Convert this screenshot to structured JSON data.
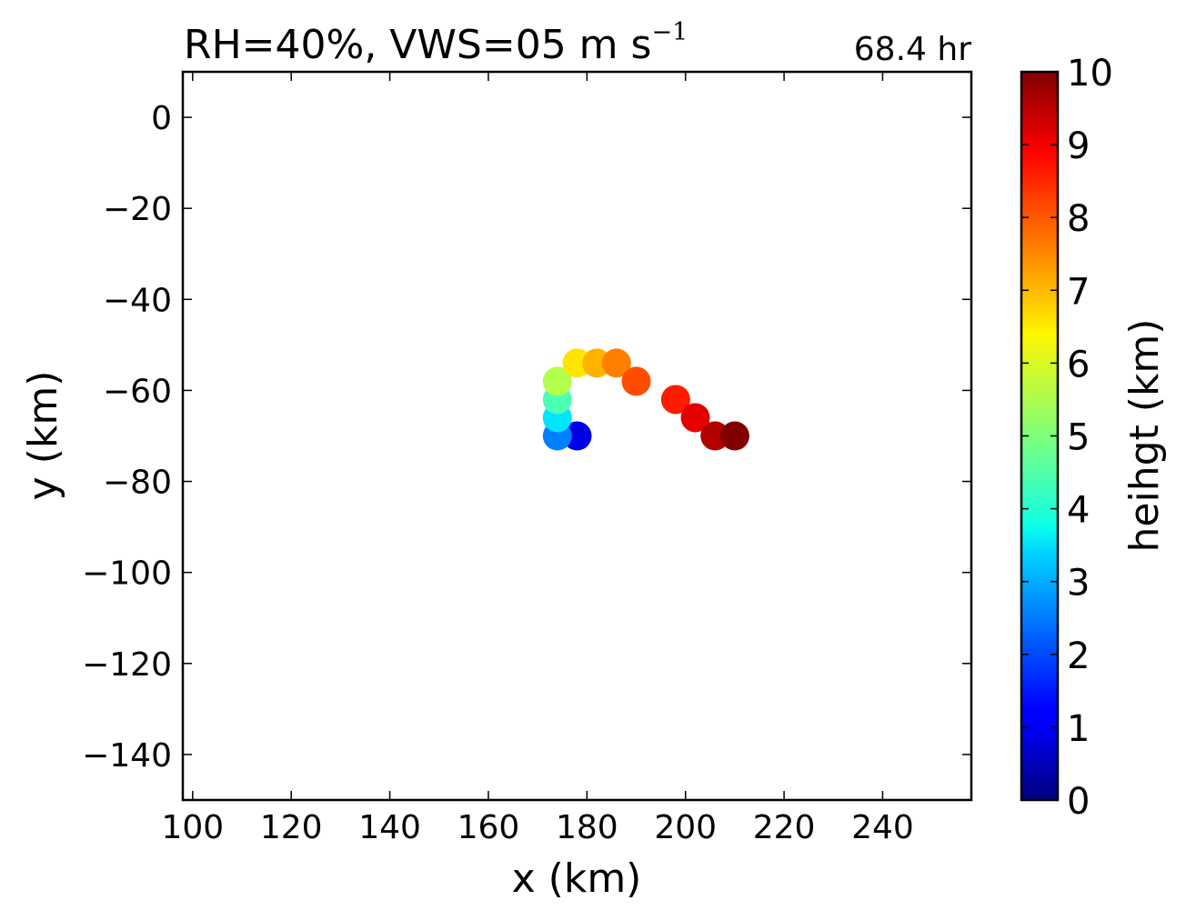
{
  "title": {
    "main": "RH=40%, VWS=05 m s",
    "superscript": "−1",
    "time_label": "68.4 hr",
    "time_color": "#0000ee"
  },
  "chart_data": {
    "type": "scatter",
    "xlabel": "x (km)",
    "ylabel": "y (km)",
    "xlim": [
      98,
      258
    ],
    "ylim": [
      -150,
      10
    ],
    "xticks": [
      100,
      120,
      140,
      160,
      180,
      200,
      220,
      240
    ],
    "xtick_labels": [
      "100",
      "120",
      "140",
      "160",
      "180",
      "200",
      "220",
      "240"
    ],
    "yticks": [
      0,
      -20,
      -40,
      -60,
      -80,
      -100,
      -120,
      -140
    ],
    "ytick_labels": [
      "0",
      "−20",
      "−40",
      "−60",
      "−80",
      "−100",
      "−120",
      "−140"
    ],
    "grid": false,
    "colormap": "jet",
    "colorbar": {
      "label": "heihgt (km)",
      "range": [
        0,
        10
      ],
      "ticks": [
        0,
        1,
        2,
        3,
        4,
        5,
        6,
        7,
        8,
        9,
        10
      ],
      "tick_labels": [
        "0",
        "1",
        "2",
        "3",
        "4",
        "5",
        "6",
        "7",
        "8",
        "9",
        "10"
      ]
    },
    "points": [
      {
        "x": 178,
        "y": -70,
        "height": 1.0
      },
      {
        "x": 174,
        "y": -70,
        "height": 2.5
      },
      {
        "x": 174,
        "y": -66,
        "height": 3.5
      },
      {
        "x": 174,
        "y": -62,
        "height": 4.5
      },
      {
        "x": 174,
        "y": -58,
        "height": 5.5
      },
      {
        "x": 178,
        "y": -54,
        "height": 6.5
      },
      {
        "x": 182,
        "y": -54,
        "height": 7.0
      },
      {
        "x": 186,
        "y": -54,
        "height": 7.5
      },
      {
        "x": 190,
        "y": -58,
        "height": 8.0
      },
      {
        "x": 198,
        "y": -62,
        "height": 8.5
      },
      {
        "x": 202,
        "y": -66,
        "height": 9.0
      },
      {
        "x": 206,
        "y": -70,
        "height": 9.5
      },
      {
        "x": 210,
        "y": -70,
        "height": 10.0
      }
    ]
  }
}
